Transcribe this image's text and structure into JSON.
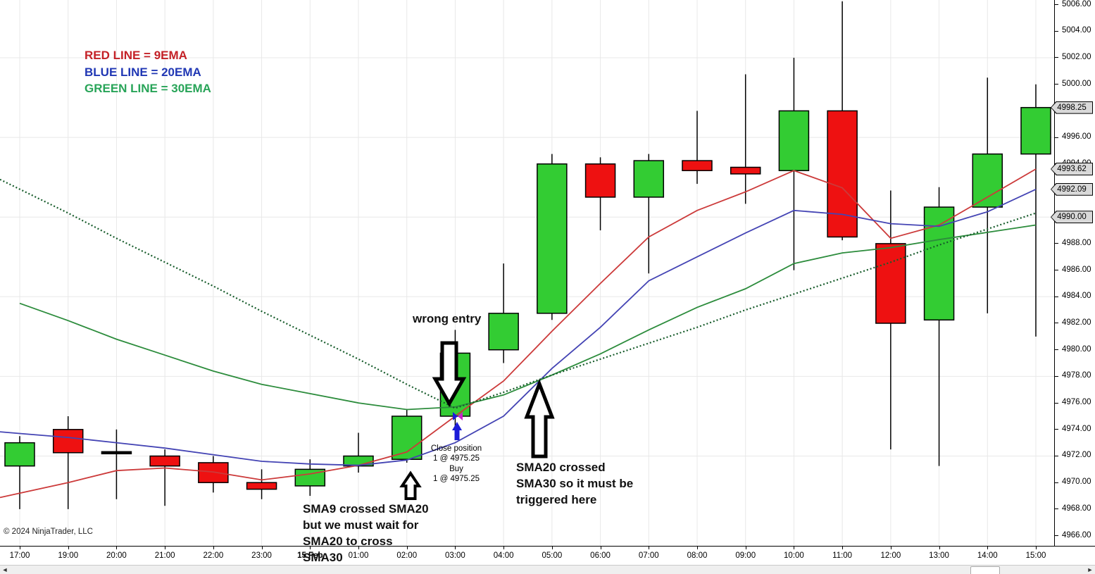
{
  "window": {
    "copyright": "© 2024 NinjaTrader, LLC"
  },
  "legend": {
    "items": [
      {
        "text": "RED LINE = 9EMA",
        "color": "#c42127"
      },
      {
        "text": "BLUE LINE = 20EMA",
        "color": "#2037b4"
      },
      {
        "text": "GREEN LINE = 30EMA",
        "color": "#28a458"
      }
    ]
  },
  "annotations": {
    "wrong_entry": "wrong entry",
    "close_position": "Close position\n1 @ 4975.25",
    "buy": "Buy\n1 @ 4975.25",
    "sma20_note": "SMA20 crossed\nSMA30 so it must be\ntriggered here",
    "sma9_note": "SMA9 crossed SMA20\nbut we must wait for\nSMA20 to cross\nSMA30"
  },
  "price_axis": {
    "labels": [
      "5006.00",
      "5004.00",
      "5002.00",
      "5000.00",
      "4998.00",
      "4996.00",
      "4994.00",
      "4992.00",
      "4990.00",
      "4988.00",
      "4986.00",
      "4984.00",
      "4982.00",
      "4980.00",
      "4978.00",
      "4976.00",
      "4974.00",
      "4972.00",
      "4970.00",
      "4968.00",
      "4966.00"
    ],
    "tags": [
      {
        "value": "4998.25",
        "price": 4998.25
      },
      {
        "value": "4993.62",
        "price": 4993.62
      },
      {
        "value": "4992.09",
        "price": 4992.09
      },
      {
        "value": "4990.00",
        "price": 4990.0
      }
    ]
  },
  "time_axis": {
    "labels": [
      {
        "t": "17:00"
      },
      {
        "t": "19:00"
      },
      {
        "t": "20:00"
      },
      {
        "t": "21:00"
      },
      {
        "t": "22:00"
      },
      {
        "t": "23:00"
      },
      {
        "t": "15 Feb",
        "bold": true
      },
      {
        "t": "01:00"
      },
      {
        "t": "02:00"
      },
      {
        "t": "03:00"
      },
      {
        "t": "04:00"
      },
      {
        "t": "05:00"
      },
      {
        "t": "06:00"
      },
      {
        "t": "07:00"
      },
      {
        "t": "08:00"
      },
      {
        "t": "09:00"
      },
      {
        "t": "10:00"
      },
      {
        "t": "11:00"
      },
      {
        "t": "12:00"
      },
      {
        "t": "13:00"
      },
      {
        "t": "14:00"
      },
      {
        "t": "15:00"
      }
    ]
  },
  "scrollbar": {
    "left_arrow": "◄",
    "right_arrow": "►"
  },
  "chart_data": {
    "type": "candlestick",
    "ylim": [
      4966,
      5006
    ],
    "y_gridlines": [
      5002,
      4996,
      4990,
      4984,
      4978,
      4972
    ],
    "colors": {
      "up": "#33cc33",
      "down": "#ee1111",
      "wick": "#000000",
      "ema9": "#cc3a3a",
      "ema20": "#4444b4",
      "ema30": "#2c8c3c",
      "dotted_ma": "#175c2b"
    },
    "candles": [
      {
        "t": "17:00",
        "o": 4971.25,
        "h": 4973.5,
        "l": 4968.0,
        "c": 4973.0
      },
      {
        "t": "19:00",
        "o": 4974.0,
        "h": 4975.0,
        "l": 4968.0,
        "c": 4972.25
      },
      {
        "t": "20:00",
        "o": 4972.25,
        "h": 4974.0,
        "l": 4968.75,
        "c": 4972.25
      },
      {
        "t": "21:00",
        "o": 4972.0,
        "h": 4972.5,
        "l": 4968.25,
        "c": 4971.25
      },
      {
        "t": "22:00",
        "o": 4971.5,
        "h": 4972.0,
        "l": 4969.25,
        "c": 4970.0
      },
      {
        "t": "23:00",
        "o": 4970.0,
        "h": 4971.0,
        "l": 4968.75,
        "c": 4969.5
      },
      {
        "t": "15 Feb",
        "o": 4969.75,
        "h": 4971.75,
        "l": 4969.0,
        "c": 4971.0
      },
      {
        "t": "01:00",
        "o": 4971.25,
        "h": 4973.75,
        "l": 4970.75,
        "c": 4972.0
      },
      {
        "t": "02:00",
        "o": 4971.75,
        "h": 4975.5,
        "l": 4971.5,
        "c": 4975.0
      },
      {
        "t": "03:00",
        "o": 4975.0,
        "h": 4981.5,
        "l": 4974.0,
        "c": 4979.75
      },
      {
        "t": "04:00",
        "o": 4980.0,
        "h": 4986.5,
        "l": 4979.0,
        "c": 4982.75
      },
      {
        "t": "05:00",
        "o": 4982.75,
        "h": 4994.75,
        "l": 4982.25,
        "c": 4994.0
      },
      {
        "t": "06:00",
        "o": 4994.0,
        "h": 4994.5,
        "l": 4989.0,
        "c": 4991.5
      },
      {
        "t": "07:00",
        "o": 4991.5,
        "h": 4994.75,
        "l": 4985.75,
        "c": 4994.25
      },
      {
        "t": "08:00",
        "o": 4994.25,
        "h": 4998.0,
        "l": 4992.5,
        "c": 4993.5
      },
      {
        "t": "09:00",
        "o": 4993.75,
        "h": 5000.75,
        "l": 4991.0,
        "c": 4993.25
      },
      {
        "t": "10:00",
        "o": 4993.5,
        "h": 5002.0,
        "l": 4986.0,
        "c": 4998.0
      },
      {
        "t": "11:00",
        "o": 4998.0,
        "h": 5006.25,
        "l": 4988.25,
        "c": 4988.5
      },
      {
        "t": "12:00",
        "o": 4988.0,
        "h": 4992.0,
        "l": 4972.5,
        "c": 4982.0
      },
      {
        "t": "13:00",
        "o": 4982.25,
        "h": 4992.25,
        "l": 4971.25,
        "c": 4990.75
      },
      {
        "t": "14:00",
        "o": 4990.75,
        "h": 5000.5,
        "l": 4982.75,
        "c": 4994.75
      },
      {
        "t": "15:00",
        "o": 4994.75,
        "h": 5000.0,
        "l": 4981.0,
        "c": 4998.25
      }
    ],
    "series": [
      {
        "name": "EMA9",
        "style": "solid",
        "color_key": "ema9",
        "extend_left": true,
        "values": [
          4969.2,
          4970.0,
          4970.9,
          4971.1,
          4970.8,
          4970.2,
          4970.65,
          4971.3,
          4972.3,
          4975.0,
          4977.65,
          4981.4,
          4985.0,
          4988.5,
          4990.5,
          4991.9,
          4993.5,
          4992.2,
          4988.4,
          4989.4,
          4991.5,
          4993.62
        ]
      },
      {
        "name": "EMA20",
        "style": "solid",
        "color_key": "ema20",
        "extend_left": true,
        "values": [
          4973.7,
          4973.4,
          4973.0,
          4972.6,
          4972.1,
          4971.6,
          4971.4,
          4971.3,
          4971.7,
          4973.0,
          4975.0,
          4978.6,
          4981.7,
          4985.2,
          4987.0,
          4988.8,
          4990.5,
          4990.2,
          4989.5,
          4989.3,
          4990.4,
          4992.09
        ]
      },
      {
        "name": "EMA30",
        "style": "solid",
        "color_key": "ema30",
        "extend_left": false,
        "values": [
          4983.5,
          4982.2,
          4980.8,
          4979.6,
          4978.4,
          4977.4,
          4976.7,
          4976.0,
          4975.5,
          4975.7,
          4976.6,
          4978.1,
          4979.7,
          4981.5,
          4983.2,
          4984.6,
          4986.5,
          4987.3,
          4987.7,
          4988.3,
          4988.85,
          4989.4
        ]
      },
      {
        "name": "SMA30 (dotted)",
        "style": "dotted",
        "color_key": "dotted_ma",
        "extend_left": true,
        "values": [
          4992.1,
          4990.3,
          4988.4,
          4986.6,
          4984.8,
          4982.9,
          4981.1,
          4979.3,
          4977.4,
          4975.6,
          4976.8,
          4978.1,
          4979.3,
          4980.5,
          4981.7,
          4983.0,
          4984.2,
          4985.4,
          4986.6,
          4987.9,
          4989.1,
          4990.3
        ]
      }
    ],
    "trade": {
      "time": "03:00",
      "price": 4975.25
    }
  }
}
